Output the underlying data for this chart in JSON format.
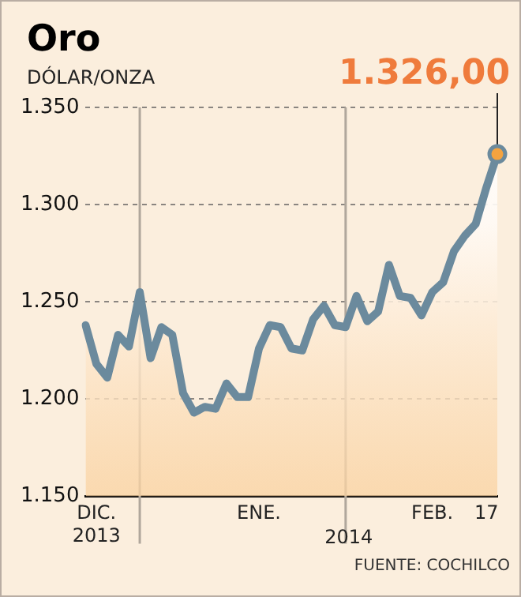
{
  "chart_data": {
    "type": "area",
    "title": "Oro",
    "ylabel": "DÓLAR/ONZA",
    "categories": [
      null,
      "DIC. 2013",
      null,
      null,
      null,
      null,
      null,
      null,
      null,
      null,
      null,
      null,
      null,
      null,
      null,
      null,
      "ENE.",
      null,
      null,
      null,
      null,
      null,
      null,
      null,
      null,
      null,
      null,
      null,
      null,
      null,
      null,
      null,
      "FEB.",
      null,
      null,
      null,
      null,
      "17",
      null
    ],
    "series": [
      {
        "color": "#6b8a9d",
        "values": [
          1238,
          1218,
          1211,
          1233,
          1227,
          1255,
          1221,
          1237,
          1233,
          1203,
          1193,
          1196,
          1195,
          1208,
          1201,
          1201,
          1226,
          1238,
          1237,
          1226,
          1225,
          1241,
          1248,
          1238,
          1237,
          1253,
          1240,
          1245,
          1269,
          1253,
          1252,
          1243,
          1255,
          1260,
          1276,
          1284,
          1290,
          1309,
          1326
        ],
        "value_labels": [
          null,
          null,
          null,
          null,
          null,
          null,
          null,
          null,
          null,
          null,
          null,
          null,
          null,
          null,
          null,
          null,
          null,
          null,
          null,
          null,
          null,
          null,
          null,
          null,
          null,
          null,
          null,
          null,
          null,
          null,
          null,
          null,
          null,
          null,
          null,
          null,
          null,
          null,
          "1.326,00"
        ]
      }
    ],
    "ylim": [
      1150,
      1350
    ],
    "yticks": [
      {
        "value": 1150,
        "label": "1.150"
      },
      {
        "value": 1200,
        "label": "1.200"
      },
      {
        "value": 1250,
        "label": "1.250"
      },
      {
        "value": 1300,
        "label": "1.300"
      },
      {
        "value": 1350,
        "label": "1.350"
      }
    ],
    "grid": "y",
    "legend": false,
    "marker": "none",
    "line_style": "solid",
    "annotations": [
      "2014",
      "FUENTE: COCHILCO"
    ]
  }
}
